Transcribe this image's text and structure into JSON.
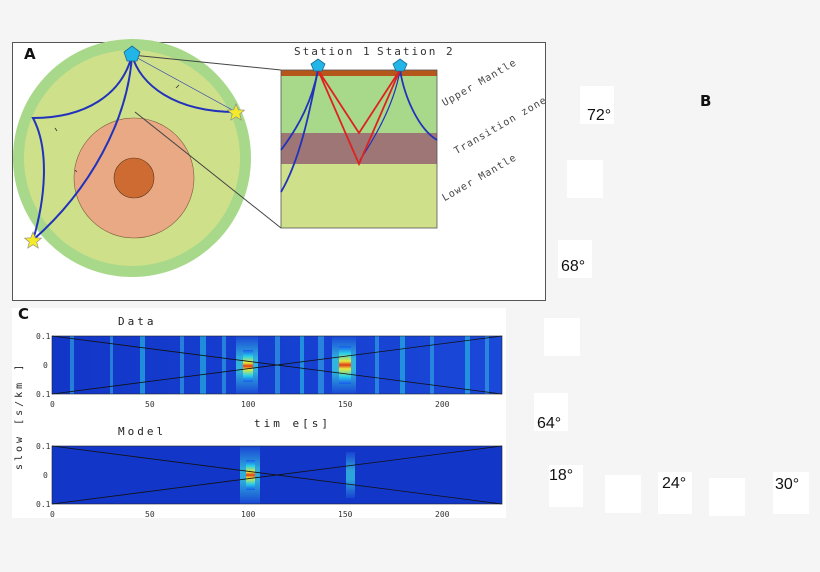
{
  "panel_a": {
    "letter": "A",
    "stations": [
      "Station 1",
      "Station 2"
    ],
    "layers": [
      "Upper Mantle",
      "Transition zone",
      "Lower Mantle"
    ]
  },
  "panel_b": {
    "letter": "B",
    "degree_labels": [
      "72°",
      "68°",
      "64°",
      "18°",
      "24°",
      "30°"
    ]
  },
  "panel_c": {
    "letter": "C",
    "plots": [
      {
        "title": "Data"
      },
      {
        "title": "Model"
      }
    ],
    "xlabel": "tim e[s]",
    "ylabel": "slow [s/km ]",
    "x_ticks": [
      "0",
      "50",
      "100",
      "150",
      "200"
    ],
    "y_ticks": [
      "0.1",
      "0",
      "0.1"
    ]
  },
  "colors": {
    "crust": "#b5561b",
    "upper_mantle": "#a8d98a",
    "transition_zone": "#9e7675",
    "lower_mantle": "#cfe08a",
    "outer_core": "#e9a985",
    "inner_core": "#cd6b33",
    "ray_blue": "#2233bb",
    "ray_red": "#dd2222",
    "station": "#22b5e8",
    "event_star": "#f4ea2a"
  }
}
